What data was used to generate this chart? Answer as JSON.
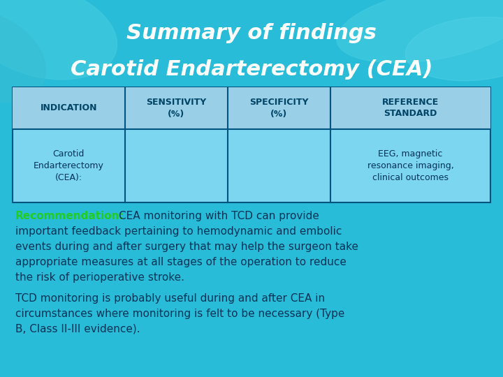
{
  "title_line1": "Summary of findings",
  "title_line2": "Carotid Endarterectomy (CEA)",
  "title_color": "#ffffff",
  "bg_color": "#29bcd8",
  "table_headers": [
    "INDICATION",
    "SENSITIVITY\n(%)",
    "SPECIFICITY\n(%)",
    "REFERENCE\nSTANDARD"
  ],
  "table_row": [
    "Carotid\nEndarterectomy\n(CEA):",
    "",
    "",
    "EEG, magnetic\nresonance imaging,\nclinical outcomes"
  ],
  "table_bg": "#7dd6f0",
  "table_border": "#005580",
  "header_text_color": "#004466",
  "row_text_color": "#003355",
  "recommendation_label": "Recommendation:",
  "recommendation_label_color": "#22cc22",
  "recommendation_body": "CEA monitoring with TCD can provide important feedback pertaining to hemodynamic and embolic events during and after surgery that may help the surgeon take appropriate measures at all stages of the operation to reduce the risk of perioperative stroke.",
  "second_para": "TCD monitoring is probably useful during and after CEA in circumstances where monitoring is felt to be necessary (Type B, Class II-III evidence).",
  "body_text_color": "#003355",
  "figsize": [
    7.2,
    5.4
  ],
  "dpi": 100
}
